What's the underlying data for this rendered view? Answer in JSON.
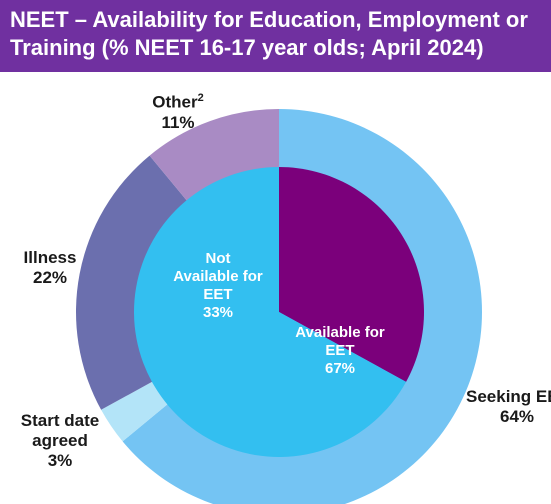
{
  "title": {
    "line1": "NEET – Availability for Education, Employment or",
    "line2": "Training (% NEET 16-17 year olds; April 2024)"
  },
  "chart_data": {
    "type": "pie",
    "title": "NEET – Availability for Education, Employment or Training (% NEET 16-17 year olds; April 2024)",
    "inner": [
      {
        "label": "Not Available for EET",
        "value": 33,
        "color": "#7b007b"
      },
      {
        "label": "Available for EET",
        "value": 67,
        "color": "#33bff0"
      }
    ],
    "outer": [
      {
        "label": "Seeking EET",
        "value": 64,
        "color": "#74c4f3"
      },
      {
        "label": "Start date agreed",
        "value": 3,
        "color": "#b3e4f8"
      },
      {
        "label": "Illness",
        "value": 22,
        "color": "#6b6fae"
      },
      {
        "label": "Other",
        "value": 11,
        "color": "#a98bc4"
      }
    ],
    "labels": {
      "other_name": "Other",
      "other_sup": "2",
      "other_pct": "11%",
      "illness_name": "Illness",
      "illness_pct": "22%",
      "start_l1": "Start date",
      "start_l2": "agreed",
      "start_pct": "3%",
      "seeking_name": "Seeking EET",
      "seeking_pct": "64%",
      "not_l1": "Not",
      "not_l2": "Available for",
      "not_l3": "EET",
      "not_pct": "33%",
      "avail_l1": "Available for",
      "avail_l2": "EET",
      "avail_pct": "67%"
    }
  }
}
